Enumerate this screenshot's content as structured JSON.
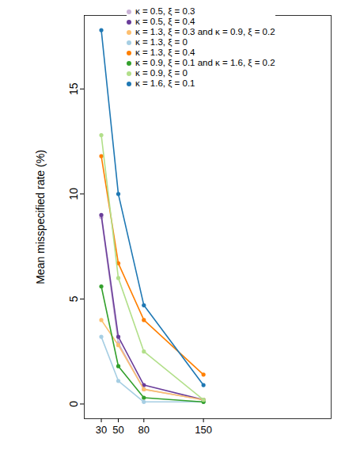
{
  "chart_data": {
    "type": "line",
    "y_label": "Mean misspecified rate (%)",
    "x": [
      30,
      50,
      80,
      150
    ],
    "xlim": [
      10,
      300
    ],
    "xticks": [
      30,
      50,
      80,
      150
    ],
    "ylim": [
      -0.7,
      18.5
    ],
    "yticks": [
      0,
      5,
      10,
      15
    ],
    "grid": false,
    "legend": "top",
    "marker": "circle",
    "series": [
      {
        "name": "κ = 0.5, ξ = 0.3",
        "color": "#cab2d6",
        "values": [
          8.9,
          2.9,
          0.7,
          0.2
        ]
      },
      {
        "name": "κ = 0.5, ξ = 0.4",
        "color": "#6a3d9a",
        "values": [
          9.0,
          3.2,
          0.9,
          0.2
        ]
      },
      {
        "name": "κ = 1.3, ξ = 0.3 and κ = 0.9, ξ = 0.2",
        "color": "#fdbf6f",
        "values": [
          4.0,
          2.8,
          0.7,
          0.2
        ]
      },
      {
        "name": "κ = 1.3, ξ = 0",
        "color": "#a6cee3",
        "values": [
          3.2,
          1.1,
          0.1,
          0.1
        ]
      },
      {
        "name": "κ = 1.3, ξ = 0.4",
        "color": "#ff7f00",
        "values": [
          11.8,
          6.7,
          4.0,
          1.4
        ]
      },
      {
        "name": "κ = 0.9, ξ = 0.1 and κ = 1.6, ξ = 0.2",
        "color": "#33a02c",
        "values": [
          5.6,
          1.8,
          0.3,
          0.1
        ]
      },
      {
        "name": "κ = 0.9, ξ = 0",
        "color": "#b2df8a",
        "values": [
          12.8,
          6.0,
          2.5,
          0.2
        ]
      },
      {
        "name": "κ = 1.6, ξ = 0.1",
        "color": "#1f78b4",
        "values": [
          17.8,
          10.0,
          4.7,
          0.9
        ]
      }
    ]
  }
}
